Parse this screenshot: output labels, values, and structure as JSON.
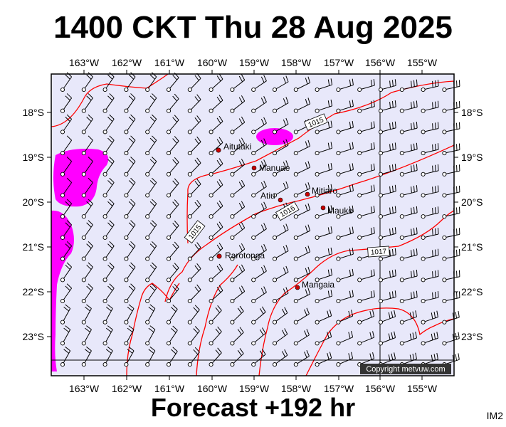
{
  "header": {
    "title": "1400 CKT Thu 28 Aug 2025"
  },
  "footer": {
    "subtitle": "Forecast +192 hr",
    "tag": "IM2"
  },
  "copyright": "Copyright metvuw.com",
  "colors": {
    "background": "#e8e8fa",
    "rain": "#ff00ff",
    "isobar": "#ff0000",
    "frame": "#000000"
  },
  "map": {
    "lon_labels": [
      "163°W",
      "162°W",
      "161°W",
      "160°W",
      "159°W",
      "158°W",
      "157°W",
      "156°W",
      "155°W"
    ],
    "lat_labels": [
      "18°S",
      "19°S",
      "20°S",
      "21°S",
      "22°S",
      "23°S"
    ],
    "isobar_labels": [
      "1015",
      "1016",
      "1015",
      "1017"
    ],
    "towns": [
      {
        "name": "Aitutaki",
        "icon": "town-dot"
      },
      {
        "name": "Manuae",
        "icon": "town-dot"
      },
      {
        "name": "Atiu",
        "icon": "town-dot"
      },
      {
        "name": "Mitiaro",
        "icon": "town-dot"
      },
      {
        "name": "Mauke",
        "icon": "town-dot"
      },
      {
        "name": "Rarotonga",
        "icon": "town-dot"
      },
      {
        "name": "Mangaia",
        "icon": "town-dot"
      }
    ]
  }
}
